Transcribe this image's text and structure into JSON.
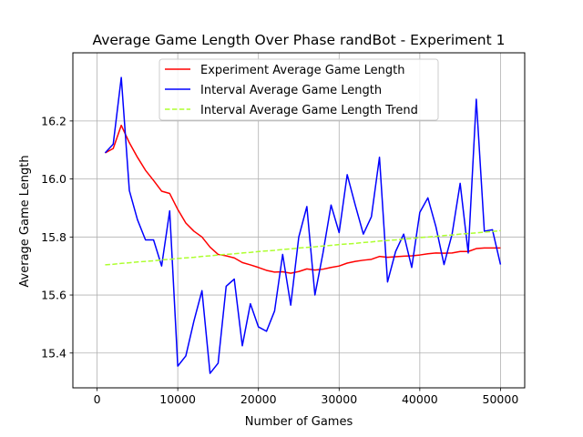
{
  "chart_data": {
    "type": "line",
    "title": "Average Game Length Over Phase randBot - Experiment 1",
    "xlabel": "Number of Games",
    "ylabel": "Average Game Length",
    "xlim": [
      -3000,
      53000
    ],
    "ylim": [
      15.28,
      16.435
    ],
    "xticks": [
      0,
      10000,
      20000,
      30000,
      40000,
      50000
    ],
    "yticks": [
      15.4,
      15.6,
      15.8,
      16.0,
      16.2
    ],
    "ytick_labels": [
      "15.4",
      "15.6",
      "15.8",
      "16.0",
      "16.2"
    ],
    "grid": true,
    "legend_position": "top-center",
    "x": [
      1000,
      2000,
      3000,
      4000,
      5000,
      6000,
      7000,
      8000,
      9000,
      10000,
      11000,
      12000,
      13000,
      14000,
      15000,
      16000,
      17000,
      18000,
      19000,
      20000,
      21000,
      22000,
      23000,
      24000,
      25000,
      26000,
      27000,
      28000,
      29000,
      30000,
      31000,
      32000,
      33000,
      34000,
      35000,
      36000,
      37000,
      38000,
      39000,
      40000,
      41000,
      42000,
      43000,
      44000,
      45000,
      46000,
      47000,
      48000,
      49000,
      50000
    ],
    "series": [
      {
        "name": "Experiment Average Game Length",
        "color": "#ff0000",
        "style": "solid",
        "values": [
          16.09,
          16.105,
          16.185,
          16.125,
          16.075,
          16.03,
          15.995,
          15.958,
          15.95,
          15.895,
          15.848,
          15.82,
          15.8,
          15.765,
          15.74,
          15.735,
          15.728,
          15.712,
          15.704,
          15.695,
          15.685,
          15.679,
          15.68,
          15.675,
          15.681,
          15.69,
          15.686,
          15.689,
          15.695,
          15.7,
          15.71,
          15.716,
          15.72,
          15.723,
          15.733,
          15.73,
          15.732,
          15.734,
          15.735,
          15.738,
          15.742,
          15.745,
          15.744,
          15.745,
          15.75,
          15.75,
          15.76,
          15.762,
          15.762,
          15.762
        ]
      },
      {
        "name": "Interval Average Game Length",
        "color": "#0000ff",
        "style": "solid",
        "values": [
          16.09,
          16.12,
          16.35,
          15.96,
          15.86,
          15.79,
          15.79,
          15.7,
          15.89,
          15.355,
          15.39,
          15.51,
          15.615,
          15.33,
          15.365,
          15.63,
          15.655,
          15.425,
          15.57,
          15.49,
          15.475,
          15.545,
          15.74,
          15.565,
          15.8,
          15.905,
          15.6,
          15.745,
          15.91,
          15.815,
          16.015,
          15.91,
          15.81,
          15.87,
          16.075,
          15.645,
          15.75,
          15.81,
          15.695,
          15.885,
          15.935,
          15.835,
          15.705,
          15.81,
          15.985,
          15.745,
          16.275,
          15.82,
          15.825,
          15.705
        ]
      },
      {
        "name": "Interval Average Game Length Trend",
        "color": "#adff2f",
        "style": "dashed",
        "values": [
          15.704,
          15.706,
          15.709,
          15.711,
          15.714,
          15.716,
          15.718,
          15.721,
          15.723,
          15.726,
          15.728,
          15.73,
          15.733,
          15.735,
          15.738,
          15.74,
          15.742,
          15.745,
          15.747,
          15.75,
          15.752,
          15.754,
          15.757,
          15.759,
          15.762,
          15.764,
          15.766,
          15.769,
          15.771,
          15.774,
          15.776,
          15.778,
          15.781,
          15.783,
          15.786,
          15.788,
          15.79,
          15.793,
          15.795,
          15.798,
          15.8,
          15.802,
          15.805,
          15.807,
          15.81,
          15.812,
          15.814,
          15.817,
          15.819,
          15.822
        ]
      }
    ]
  }
}
